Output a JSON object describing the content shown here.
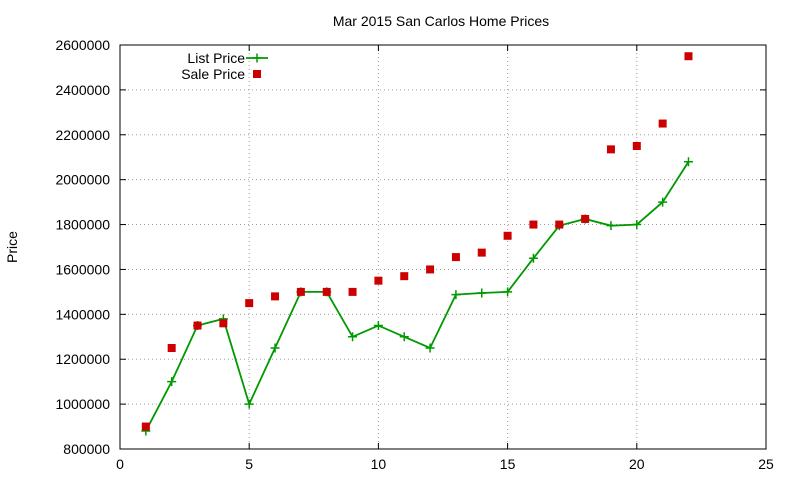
{
  "chart_data": {
    "type": "line",
    "title": "Mar 2015 San Carlos Home Prices",
    "xlabel": "",
    "ylabel": "Price",
    "xlim": [
      0,
      25
    ],
    "ylim": [
      800000,
      2600000
    ],
    "x_ticks": [
      0,
      5,
      10,
      15,
      20,
      25
    ],
    "y_ticks": [
      800000,
      1000000,
      1200000,
      1400000,
      1600000,
      1800000,
      2000000,
      2200000,
      2400000,
      2600000
    ],
    "grid": true,
    "legend_position": "top-left",
    "series": [
      {
        "name": "List Price",
        "style": "linespoints",
        "marker": "plus",
        "color": "#009900",
        "x": [
          1,
          2,
          3,
          4,
          5,
          6,
          7,
          8,
          9,
          10,
          11,
          12,
          13,
          14,
          15,
          16,
          17,
          18,
          19,
          20,
          21,
          22
        ],
        "y": [
          880000,
          1100000,
          1350000,
          1380000,
          1000000,
          1250000,
          1500000,
          1500000,
          1300000,
          1350000,
          1300000,
          1250000,
          1488000,
          1495000,
          1500000,
          1650000,
          1795000,
          1825000,
          1795000,
          1800000,
          1900000,
          2080000
        ]
      },
      {
        "name": "Sale Price",
        "style": "points",
        "marker": "square",
        "color": "#cc0000",
        "x": [
          1,
          2,
          3,
          4,
          5,
          6,
          7,
          8,
          9,
          10,
          11,
          12,
          13,
          14,
          15,
          16,
          17,
          18,
          19,
          20,
          21,
          22
        ],
        "y": [
          900000,
          1250000,
          1350000,
          1360000,
          1450000,
          1480000,
          1500000,
          1500000,
          1500000,
          1550000,
          1570000,
          1600000,
          1655000,
          1675000,
          1750000,
          1800000,
          1800000,
          1825000,
          2135000,
          2150000,
          2250000,
          2550000
        ]
      }
    ]
  }
}
